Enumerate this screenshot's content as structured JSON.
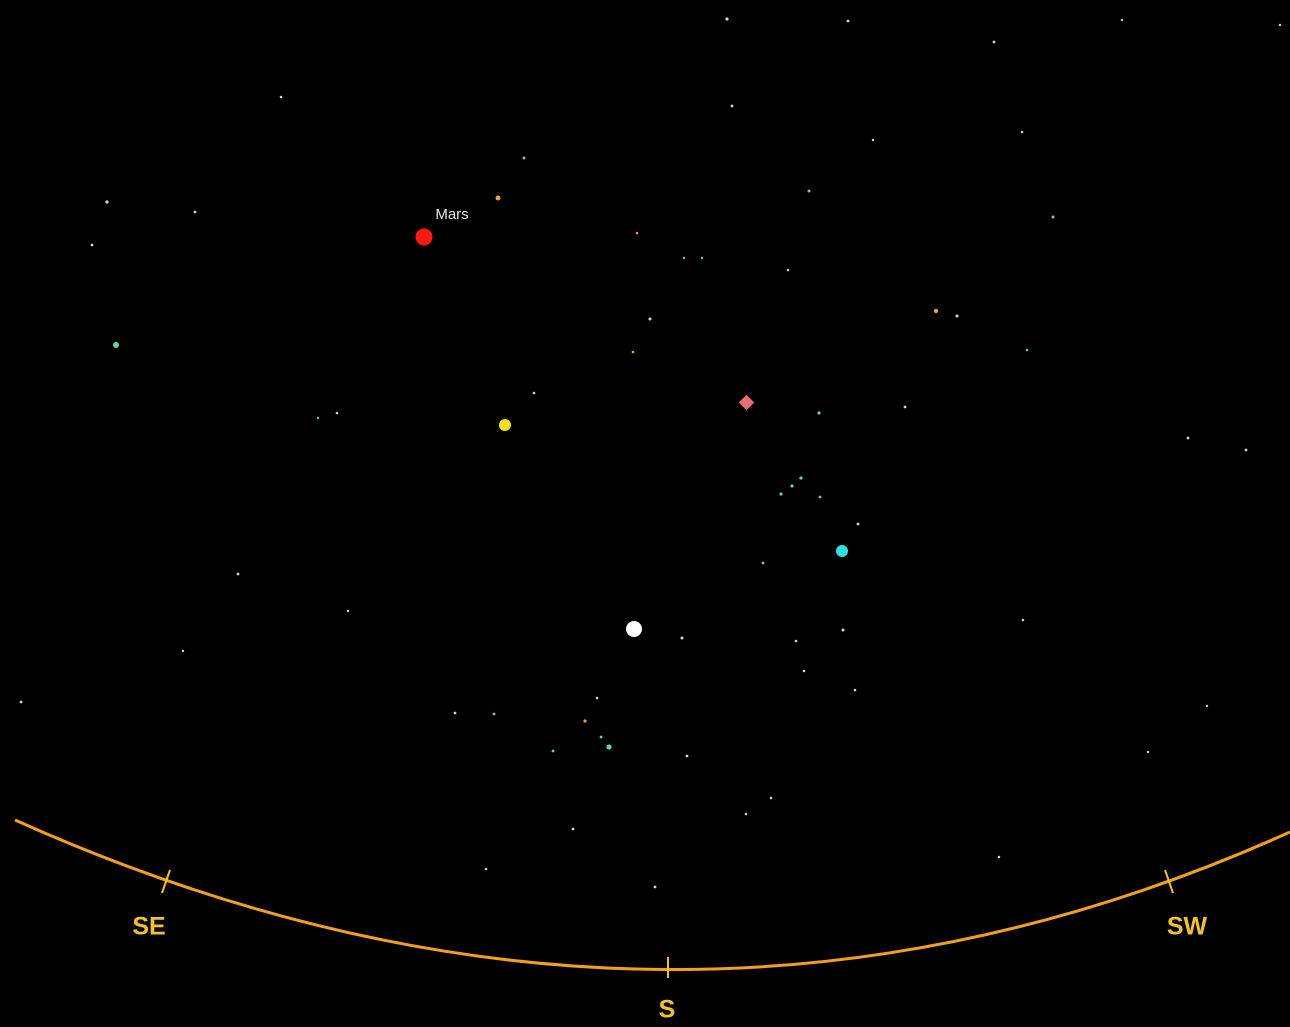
{
  "objects": {
    "planet_label": "Mars"
  },
  "horizon": {
    "directions": [
      "SE",
      "S",
      "SW"
    ]
  }
}
